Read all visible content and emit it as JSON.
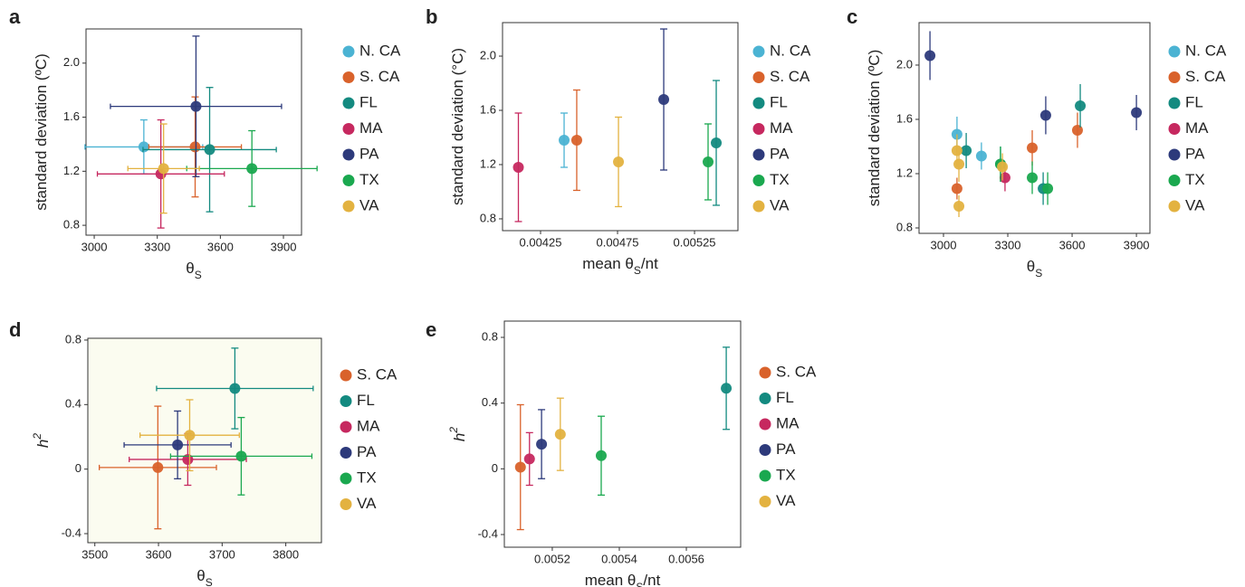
{
  "chart_data": [
    {
      "type": "scatter",
      "panel": "a",
      "xlabel": [
        "θ",
        "S"
      ],
      "ylabel": [
        "standard deviation (ºC)"
      ],
      "error_caps": true,
      "xlim": [
        2961,
        3986
      ],
      "xticks": [
        3000,
        3300,
        3600,
        3900
      ],
      "ylim": [
        0.727,
        2.253
      ],
      "yticks": [
        0.8,
        1.2,
        1.6,
        {
          "value": 2,
          "label": "2.0"
        }
      ],
      "series": [
        {
          "name": "N. CA",
          "color": "#4bb3d3",
          "x": [
            3236
          ],
          "values": [
            1.38
          ],
          "xerr": [
            280
          ],
          "yerr": [
            0.2
          ]
        },
        {
          "name": "S. CA",
          "color": "#d9622b",
          "x": [
            3480
          ],
          "values": [
            1.38
          ],
          "xerr": [
            220
          ],
          "yerr": [
            0.37
          ]
        },
        {
          "name": "FL",
          "color": "#138a80",
          "x": [
            3549
          ],
          "values": [
            1.36
          ],
          "xerr": [
            317
          ],
          "yerr": [
            0.46
          ]
        },
        {
          "name": "MA",
          "color": "#c6285f",
          "x": [
            3317
          ],
          "values": [
            1.18
          ],
          "xerr": [
            302
          ],
          "yerr": [
            0.4
          ]
        },
        {
          "name": "PA",
          "color": "#2d3a7b",
          "x": [
            3484
          ],
          "values": [
            1.68
          ],
          "xerr": [
            407
          ],
          "yerr": [
            0.52
          ]
        },
        {
          "name": "TX",
          "color": "#1aa84f",
          "x": [
            3750
          ],
          "values": [
            1.22
          ],
          "xerr": [
            310
          ],
          "yerr": [
            0.28
          ]
        },
        {
          "name": "VA",
          "color": "#e3b240",
          "x": [
            3330
          ],
          "values": [
            1.22
          ],
          "xerr": [
            170
          ],
          "yerr": [
            0.33
          ]
        }
      ]
    },
    {
      "type": "scatter",
      "panel": "b",
      "xlabel": [
        "mean θ",
        "S",
        "/nt"
      ],
      "ylabel": [
        "standard deviation (°C)"
      ],
      "error_caps": true,
      "xlim": [
        0.004003,
        0.005532
      ],
      "xticks": [
        0.00425,
        0.00475,
        0.00525
      ],
      "ylim": [
        0.713,
        2.247
      ],
      "yticks": [
        0.8,
        1.2,
        1.6,
        {
          "value": 2,
          "label": "2.0"
        }
      ],
      "series": [
        {
          "name": "N. CA",
          "color": "#4bb3d3",
          "x": [
            0.004403
          ],
          "values": [
            1.38
          ],
          "yerr": [
            0.2
          ]
        },
        {
          "name": "S. CA",
          "color": "#d9622b",
          "x": [
            0.004485
          ],
          "values": [
            1.38
          ],
          "yerr": [
            0.37
          ]
        },
        {
          "name": "FL",
          "color": "#138a80",
          "x": [
            0.005391
          ],
          "values": [
            1.36
          ],
          "yerr": [
            0.46
          ]
        },
        {
          "name": "MA",
          "color": "#c6285f",
          "x": [
            0.004106
          ],
          "values": [
            1.18
          ],
          "yerr": [
            0.4
          ]
        },
        {
          "name": "PA",
          "color": "#2d3a7b",
          "x": [
            0.00505
          ],
          "values": [
            1.68
          ],
          "yerr": [
            0.52
          ]
        },
        {
          "name": "TX",
          "color": "#1aa84f",
          "x": [
            0.005338
          ],
          "values": [
            1.22
          ],
          "yerr": [
            0.28
          ]
        },
        {
          "name": "VA",
          "color": "#e3b240",
          "x": [
            0.004756
          ],
          "values": [
            1.22
          ],
          "yerr": [
            0.33
          ]
        }
      ]
    },
    {
      "type": "scatter",
      "panel": "c",
      "xlabel": [
        "θ",
        "S"
      ],
      "ylabel": [
        "standard deviation (ºC)"
      ],
      "error_caps": false,
      "xlim": [
        2886,
        3963
      ],
      "xticks": [
        3000,
        3300,
        3600,
        3900
      ],
      "ylim": [
        0.76,
        2.313
      ],
      "yticks": [
        0.8,
        1.2,
        1.6,
        {
          "value": 2,
          "label": "2.0"
        }
      ],
      "series": [
        {
          "name": "N. CA",
          "color": "#4bb3d3",
          "x": [
            3063,
            3177
          ],
          "values": [
            1.49,
            1.33
          ],
          "yerr": [
            0.13,
            0.1
          ]
        },
        {
          "name": "S. CA",
          "color": "#d9622b",
          "x": [
            3063,
            3414,
            3625
          ],
          "values": [
            1.09,
            1.39,
            1.52
          ],
          "yerr": [
            0.08,
            0.13,
            0.13
          ]
        },
        {
          "name": "FL",
          "color": "#138a80",
          "x": [
            3106,
            3266,
            3465,
            3638
          ],
          "values": [
            1.37,
            1.27,
            1.09,
            1.7
          ],
          "yerr": [
            0.13,
            0.13,
            0.12,
            0.16
          ]
        },
        {
          "name": "MA",
          "color": "#c6285f",
          "x": [
            3287
          ],
          "values": [
            1.17
          ],
          "yerr": [
            0.1
          ]
        },
        {
          "name": "PA",
          "color": "#2d3a7b",
          "x": [
            2937,
            3477,
            3900
          ],
          "values": [
            2.07,
            1.63,
            1.65
          ],
          "yerr": [
            0.18,
            0.14,
            0.13
          ]
        },
        {
          "name": "TX",
          "color": "#1aa84f",
          "x": [
            3266,
            3414,
            3486
          ],
          "values": [
            1.27,
            1.17,
            1.09
          ],
          "yerr": [
            0.13,
            0.12,
            0.12
          ]
        },
        {
          "name": "VA",
          "color": "#e3b240",
          "x": [
            3063,
            3072,
            3072,
            3275
          ],
          "values": [
            1.37,
            1.27,
            0.96,
            1.25
          ],
          "yerr": [
            0.12,
            0.13,
            0.08,
            0.1
          ]
        }
      ]
    },
    {
      "type": "scatter",
      "panel": "d",
      "xlabel": [
        "θ",
        "S"
      ],
      "ylabel": [
        "h",
        "2"
      ],
      "ylabel_style": "italic",
      "error_caps": true,
      "plot_background": "#fbfcf0",
      "xlim": [
        3489,
        3856
      ],
      "xticks": [
        3500,
        3600,
        3700,
        3800
      ],
      "ylim": [
        -0.456,
        0.811
      ],
      "yticks": [
        -0.4,
        0,
        0.4,
        0.8
      ],
      "series": [
        {
          "name": "S. CA",
          "color": "#d9622b",
          "x": [
            3599
          ],
          "values": [
            0.01
          ],
          "xerr": [
            92
          ],
          "yerr": [
            0.38
          ]
        },
        {
          "name": "FL",
          "color": "#138a80",
          "x": [
            3720
          ],
          "values": [
            0.5
          ],
          "xerr": [
            123
          ],
          "yerr": [
            0.25
          ]
        },
        {
          "name": "MA",
          "color": "#c6285f",
          "x": [
            3646
          ],
          "values": [
            0.06
          ],
          "xerr": [
            92
          ],
          "yerr": [
            0.16
          ]
        },
        {
          "name": "PA",
          "color": "#2d3a7b",
          "x": [
            3630
          ],
          "values": [
            0.15
          ],
          "xerr": [
            84
          ],
          "yerr": [
            0.21
          ]
        },
        {
          "name": "TX",
          "color": "#1aa84f",
          "x": [
            3730
          ],
          "values": [
            0.08
          ],
          "xerr": [
            111
          ],
          "yerr": [
            0.24
          ]
        },
        {
          "name": "VA",
          "color": "#e3b240",
          "x": [
            3649
          ],
          "values": [
            0.21
          ],
          "xerr": [
            78
          ],
          "yerr": [
            0.22
          ]
        }
      ]
    },
    {
      "type": "scatter",
      "panel": "e",
      "xlabel": [
        "mean θ",
        "S",
        "/nt"
      ],
      "ylabel": [
        "h",
        "2"
      ],
      "ylabel_style": "italic",
      "error_caps": true,
      "xlim": [
        0.005057,
        0.005762
      ],
      "xticks": [
        0.0052,
        0.0054,
        0.0056
      ],
      "ylim": [
        -0.477,
        0.899
      ],
      "yticks": [
        -0.4,
        0,
        0.4,
        0.8
      ],
      "series": [
        {
          "name": "S. CA",
          "color": "#d9622b",
          "x": [
            0.005105
          ],
          "values": [
            0.01
          ],
          "yerr": [
            0.38
          ]
        },
        {
          "name": "FL",
          "color": "#138a80",
          "x": [
            0.005719
          ],
          "values": [
            0.49
          ],
          "yerr": [
            0.25
          ]
        },
        {
          "name": "MA",
          "color": "#c6285f",
          "x": [
            0.005132
          ],
          "values": [
            0.06
          ],
          "yerr": [
            0.16
          ]
        },
        {
          "name": "PA",
          "color": "#2d3a7b",
          "x": [
            0.005168
          ],
          "values": [
            0.15
          ],
          "yerr": [
            0.21
          ]
        },
        {
          "name": "TX",
          "color": "#1aa84f",
          "x": [
            0.005346
          ],
          "values": [
            0.08
          ],
          "yerr": [
            0.24
          ]
        },
        {
          "name": "VA",
          "color": "#e3b240",
          "x": [
            0.005224
          ],
          "values": [
            0.21
          ],
          "yerr": [
            0.22
          ]
        }
      ]
    }
  ]
}
